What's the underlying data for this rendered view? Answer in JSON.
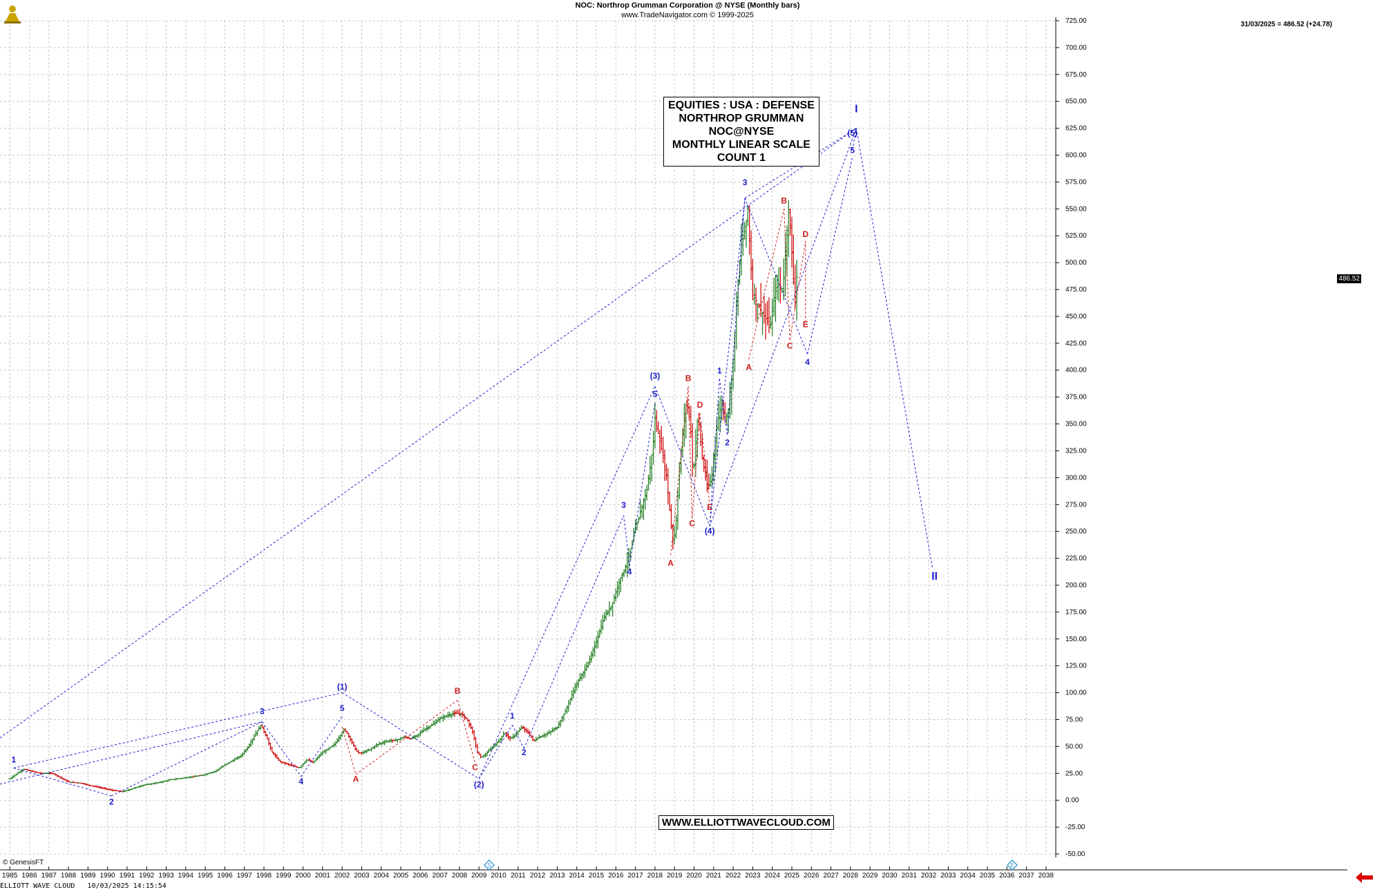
{
  "header": {
    "title": "NOC:  Northrop Grumman Corporation @ NYSE  (Monthly bars)",
    "subtitle": "www.TradeNavigator.com © 1999-2025"
  },
  "last_quote": "31/03/2025 = 486.52 (+24.78)",
  "price_tag": "486.52",
  "info_box": {
    "line1": "EQUITIES : USA : DEFENSE",
    "line2": "NORTHROP GRUMMAN",
    "line3": "NOC@NYSE",
    "line4": "MONTHLY LINEAR SCALE",
    "line5": "COUNT 1"
  },
  "website": "WWW.ELLIOTTWAVECLOUD.COM",
  "copyright": "© GenesisFT",
  "footer": "ELLIOTT WAVE CLOUD   10/03/2025 14:15:54",
  "icons": {
    "logo": "rider-logo-icon",
    "event": "event-marker-icon",
    "scroll": "red-arrow-icon"
  },
  "colors": {
    "up": "#1a7a1a",
    "down": "#cc0000",
    "wave_blue": "#1a1acc",
    "wave_red": "#cc1a1a",
    "grid": "#c8c8c8"
  },
  "chart_data": {
    "type": "bar",
    "series_name": "NOC",
    "x_range": [
      1985,
      2038
    ],
    "ylim": [
      -50,
      725
    ],
    "y_ticks": [
      -50,
      -25,
      0,
      25,
      50,
      75,
      100,
      125,
      150,
      175,
      200,
      225,
      250,
      275,
      300,
      325,
      350,
      375,
      400,
      425,
      450,
      475,
      500,
      525,
      550,
      575,
      600,
      625,
      650,
      675,
      700,
      725
    ],
    "x_ticks": [
      1985,
      1986,
      1987,
      1988,
      1989,
      1990,
      1991,
      1992,
      1993,
      1994,
      1995,
      1996,
      1997,
      1998,
      1999,
      2000,
      2001,
      2002,
      2003,
      2004,
      2005,
      2006,
      2007,
      2008,
      2009,
      2010,
      2011,
      2012,
      2013,
      2014,
      2015,
      2016,
      2017,
      2018,
      2019,
      2020,
      2021,
      2022,
      2023,
      2024,
      2025,
      2026,
      2027,
      2028,
      2029,
      2030,
      2031,
      2032,
      2033,
      2034,
      2035,
      2036,
      2037,
      2038
    ],
    "grid": true,
    "price_path": [
      [
        1985.0,
        20
      ],
      [
        1985.3,
        24
      ],
      [
        1985.7,
        29
      ],
      [
        1986.1,
        27
      ],
      [
        1986.6,
        25
      ],
      [
        1987.2,
        25
      ],
      [
        1987.6,
        21
      ],
      [
        1988.0,
        17
      ],
      [
        1988.6,
        16
      ],
      [
        1989.3,
        13
      ],
      [
        1989.8,
        11
      ],
      [
        1990.3,
        9
      ],
      [
        1990.8,
        8
      ],
      [
        1991.3,
        11
      ],
      [
        1991.8,
        14
      ],
      [
        1992.5,
        16
      ],
      [
        1993.2,
        19
      ],
      [
        1994.0,
        21
      ],
      [
        1994.8,
        23
      ],
      [
        1995.5,
        27
      ],
      [
        1996.1,
        34
      ],
      [
        1996.8,
        41
      ],
      [
        1997.2,
        50
      ],
      [
        1997.6,
        63
      ],
      [
        1997.85,
        70
      ],
      [
        1998.1,
        60
      ],
      [
        1998.4,
        45
      ],
      [
        1998.8,
        36
      ],
      [
        1999.3,
        33
      ],
      [
        1999.8,
        30
      ],
      [
        2000.2,
        38
      ],
      [
        2000.5,
        35
      ],
      [
        2000.9,
        43
      ],
      [
        2001.3,
        48
      ],
      [
        2001.6,
        52
      ],
      [
        2001.9,
        60
      ],
      [
        2002.1,
        66
      ],
      [
        2002.3,
        61
      ],
      [
        2002.6,
        50
      ],
      [
        2002.8,
        44
      ],
      [
        2003.0,
        44
      ],
      [
        2003.4,
        47
      ],
      [
        2003.8,
        52
      ],
      [
        2004.3,
        55
      ],
      [
        2004.8,
        56
      ],
      [
        2005.2,
        59
      ],
      [
        2005.5,
        57
      ],
      [
        2005.8,
        60
      ],
      [
        2006.2,
        66
      ],
      [
        2006.6,
        70
      ],
      [
        2007.0,
        76
      ],
      [
        2007.4,
        79
      ],
      [
        2007.8,
        81
      ],
      [
        2008.1,
        80
      ],
      [
        2008.4,
        75
      ],
      [
        2008.7,
        62
      ],
      [
        2008.9,
        45
      ],
      [
        2009.1,
        40
      ],
      [
        2009.3,
        42
      ],
      [
        2009.6,
        48
      ],
      [
        2010.0,
        55
      ],
      [
        2010.3,
        63
      ],
      [
        2010.6,
        57
      ],
      [
        2010.9,
        62
      ],
      [
        2011.2,
        68
      ],
      [
        2011.5,
        63
      ],
      [
        2011.8,
        55
      ],
      [
        2012.0,
        58
      ],
      [
        2012.5,
        62
      ],
      [
        2013.0,
        68
      ],
      [
        2013.4,
        82
      ],
      [
        2013.9,
        105
      ],
      [
        2014.3,
        118
      ],
      [
        2014.7,
        132
      ],
      [
        2015.0,
        148
      ],
      [
        2015.4,
        170
      ],
      [
        2015.8,
        182
      ],
      [
        2016.2,
        205
      ],
      [
        2016.6,
        222
      ],
      [
        2016.9,
        245
      ],
      [
        2017.2,
        265
      ],
      [
        2017.6,
        290
      ],
      [
        2017.9,
        330
      ],
      [
        2018.0,
        355
      ],
      [
        2018.3,
        330
      ],
      [
        2018.6,
        300
      ],
      [
        2018.8,
        260
      ],
      [
        2018.95,
        238
      ],
      [
        2019.1,
        265
      ],
      [
        2019.3,
        320
      ],
      [
        2019.6,
        370
      ],
      [
        2019.8,
        355
      ],
      [
        2019.95,
        300
      ],
      [
        2020.2,
        360
      ],
      [
        2020.4,
        320
      ],
      [
        2020.7,
        290
      ],
      [
        2020.9,
        300
      ],
      [
        2021.1,
        340
      ],
      [
        2021.4,
        370
      ],
      [
        2021.6,
        355
      ],
      [
        2021.8,
        365
      ],
      [
        2022.0,
        410
      ],
      [
        2022.2,
        470
      ],
      [
        2022.4,
        515
      ],
      [
        2022.6,
        530
      ],
      [
        2022.75,
        550
      ],
      [
        2022.9,
        500
      ],
      [
        2023.0,
        470
      ],
      [
        2023.3,
        460
      ],
      [
        2023.6,
        450
      ],
      [
        2023.9,
        440
      ],
      [
        2024.1,
        470
      ],
      [
        2024.3,
        480
      ],
      [
        2024.55,
        475
      ],
      [
        2024.7,
        520
      ],
      [
        2024.85,
        550
      ],
      [
        2025.0,
        510
      ],
      [
        2025.15,
        465
      ],
      [
        2025.25,
        486.52
      ]
    ],
    "projection": [
      [
        2025.25,
        486.52
      ],
      [
        2025.9,
        420
      ],
      [
        2027.0,
        520
      ],
      [
        2028.1,
        605
      ],
      [
        2028.3,
        625
      ],
      [
        2032.2,
        215
      ]
    ],
    "wave_labels": [
      {
        "text": "1",
        "x": 1985.2,
        "y": 35,
        "color": "blue"
      },
      {
        "text": "2",
        "x": 1990.2,
        "y": -4,
        "color": "blue"
      },
      {
        "text": "3",
        "x": 1997.9,
        "y": 80,
        "color": "blue"
      },
      {
        "text": "4",
        "x": 1999.9,
        "y": 15,
        "color": "blue"
      },
      {
        "text": "5",
        "x": 2002.0,
        "y": 83,
        "color": "blue"
      },
      {
        "text": "(1)",
        "x": 2002.0,
        "y": 103,
        "color": "blue"
      },
      {
        "text": "A",
        "x": 2002.7,
        "y": 17,
        "color": "red"
      },
      {
        "text": "B",
        "x": 2007.9,
        "y": 99,
        "color": "red"
      },
      {
        "text": "C",
        "x": 2008.8,
        "y": 28,
        "color": "red"
      },
      {
        "text": "(2)",
        "x": 2009.0,
        "y": 12,
        "color": "blue"
      },
      {
        "text": "1",
        "x": 2010.7,
        "y": 76,
        "color": "blue"
      },
      {
        "text": "2",
        "x": 2011.3,
        "y": 42,
        "color": "blue"
      },
      {
        "text": "3",
        "x": 2016.4,
        "y": 272,
        "color": "blue"
      },
      {
        "text": "4",
        "x": 2016.7,
        "y": 210,
        "color": "blue"
      },
      {
        "text": "5",
        "x": 2018.0,
        "y": 375,
        "color": "blue"
      },
      {
        "text": "(3)",
        "x": 2018.0,
        "y": 392,
        "color": "blue"
      },
      {
        "text": "A",
        "x": 2018.8,
        "y": 218,
        "color": "red"
      },
      {
        "text": "B",
        "x": 2019.7,
        "y": 390,
        "color": "red"
      },
      {
        "text": "C",
        "x": 2019.9,
        "y": 255,
        "color": "red"
      },
      {
        "text": "D",
        "x": 2020.3,
        "y": 365,
        "color": "red"
      },
      {
        "text": "E",
        "x": 2020.8,
        "y": 270,
        "color": "red"
      },
      {
        "text": "(4)",
        "x": 2020.8,
        "y": 248,
        "color": "blue"
      },
      {
        "text": "1",
        "x": 2021.3,
        "y": 397,
        "color": "blue"
      },
      {
        "text": "2",
        "x": 2021.7,
        "y": 330,
        "color": "blue"
      },
      {
        "text": "3",
        "x": 2022.6,
        "y": 572,
        "color": "blue"
      },
      {
        "text": "A",
        "x": 2022.8,
        "y": 400,
        "color": "red"
      },
      {
        "text": "B",
        "x": 2024.6,
        "y": 555,
        "color": "red"
      },
      {
        "text": "C",
        "x": 2024.9,
        "y": 420,
        "color": "red"
      },
      {
        "text": "D",
        "x": 2025.7,
        "y": 524,
        "color": "red"
      },
      {
        "text": "E",
        "x": 2025.7,
        "y": 440,
        "color": "red"
      },
      {
        "text": "4",
        "x": 2025.8,
        "y": 405,
        "color": "blue"
      },
      {
        "text": "5",
        "x": 2028.1,
        "y": 602,
        "color": "blue"
      },
      {
        "text": "(5)",
        "x": 2028.1,
        "y": 618,
        "color": "blue"
      },
      {
        "text": "I",
        "x": 2028.3,
        "y": 640,
        "color": "blue"
      },
      {
        "text": "II",
        "x": 2032.3,
        "y": 205,
        "color": "blue"
      }
    ]
  }
}
